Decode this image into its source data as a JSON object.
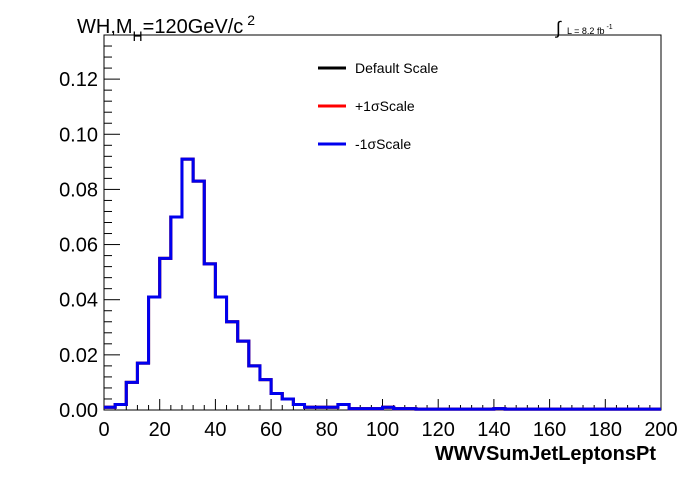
{
  "title": {
    "main": "WH,M",
    "sub": "H",
    "rest": "=120GeV/c",
    "sup": "2"
  },
  "lumi": {
    "integral": "∫",
    "text": "L = 8.2 fb",
    "sup": "-1"
  },
  "chart_data": {
    "type": "line",
    "xlabel": "WWVSumJetLeptonsPt",
    "ylabel": "",
    "xlim": [
      0,
      200
    ],
    "ylim": [
      0,
      0.136
    ],
    "x_ticks": [
      "0",
      "20",
      "40",
      "60",
      "80",
      "100",
      "120",
      "140",
      "160",
      "180",
      "200"
    ],
    "y_ticks": [
      "0.00",
      "0.02",
      "0.04",
      "0.06",
      "0.08",
      "0.10",
      "0.12"
    ],
    "legend_position": "top-center",
    "bin_width": 4,
    "series": [
      {
        "name": "Default Scale",
        "color": "#000000",
        "values": [
          0.001,
          0.002,
          0.01,
          0.017,
          0.041,
          0.055,
          0.07,
          0.091,
          0.083,
          0.053,
          0.041,
          0.032,
          0.025,
          0.016,
          0.011,
          0.006,
          0.004,
          0.002,
          0.001,
          0.001,
          0.001,
          0.002,
          0.0005,
          0.0005,
          0.0005,
          0.001,
          0.0005,
          0.0005,
          0.0003,
          0.0003,
          0.0003,
          0.0003,
          0.0003,
          0.0003,
          0.0003,
          0.0005,
          0.0003,
          0.0003,
          0.0003,
          0.0003,
          0.0003,
          0.0003,
          0.0003,
          0.0003,
          0.0003,
          0.0003,
          0.0003,
          0.0003,
          0.0003,
          0.0003
        ]
      },
      {
        "name": "+1σScale",
        "color": "#ff0000",
        "values": [
          0.001,
          0.002,
          0.01,
          0.017,
          0.041,
          0.055,
          0.07,
          0.091,
          0.083,
          0.053,
          0.041,
          0.032,
          0.025,
          0.016,
          0.011,
          0.006,
          0.004,
          0.002,
          0.001,
          0.001,
          0.001,
          0.002,
          0.0005,
          0.0005,
          0.0005,
          0.001,
          0.0005,
          0.0005,
          0.0003,
          0.0003,
          0.0003,
          0.0003,
          0.0003,
          0.0003,
          0.0003,
          0.0005,
          0.0003,
          0.0003,
          0.0003,
          0.0003,
          0.0003,
          0.0003,
          0.0003,
          0.0003,
          0.0003,
          0.0003,
          0.0003,
          0.0003,
          0.0003,
          0.0003
        ]
      },
      {
        "name": "-1σScale",
        "color": "#0000ee",
        "values": [
          0.001,
          0.002,
          0.01,
          0.017,
          0.041,
          0.055,
          0.07,
          0.091,
          0.083,
          0.053,
          0.041,
          0.032,
          0.025,
          0.016,
          0.011,
          0.006,
          0.004,
          0.002,
          0.001,
          0.001,
          0.001,
          0.002,
          0.0005,
          0.0005,
          0.0005,
          0.001,
          0.0005,
          0.0005,
          0.0003,
          0.0003,
          0.0003,
          0.0003,
          0.0003,
          0.0003,
          0.0003,
          0.0005,
          0.0003,
          0.0003,
          0.0003,
          0.0003,
          0.0003,
          0.0003,
          0.0003,
          0.0003,
          0.0003,
          0.0003,
          0.0003,
          0.0003,
          0.0003,
          0.0003
        ]
      }
    ]
  }
}
